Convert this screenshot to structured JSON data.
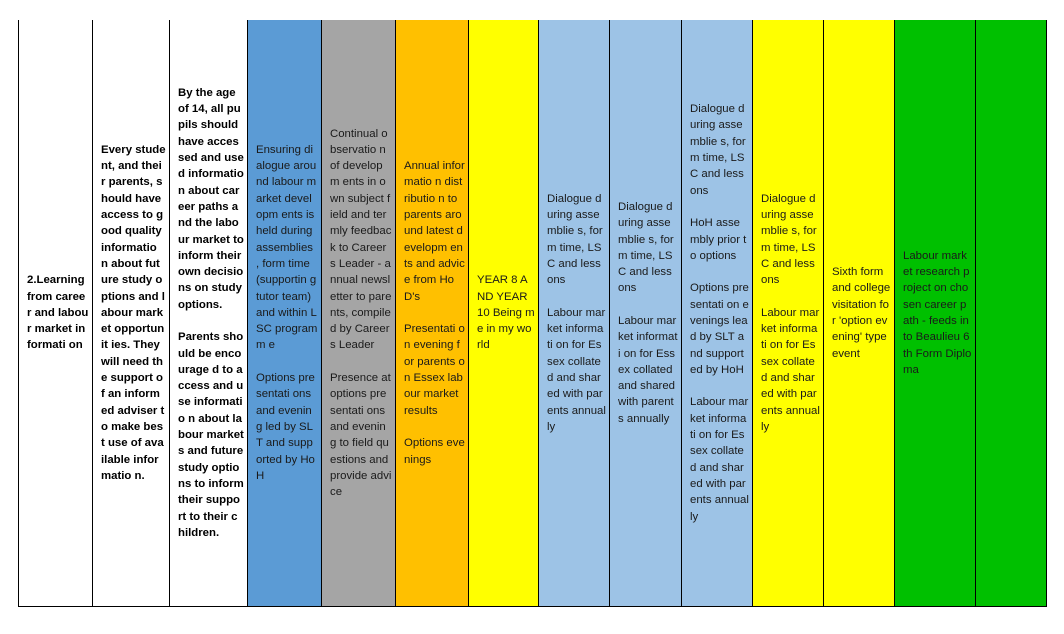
{
  "colors": {
    "blue_dark": "#5b9bd5",
    "grey": "#a5a5a5",
    "orange": "#ffc000",
    "yellow": "#ffff00",
    "blue_light": "#9dc3e6",
    "green": "#00c000",
    "white": "#ffffff"
  },
  "row": {
    "cells": [
      {
        "bg": "white",
        "bold": true,
        "paras": [
          "2.Learning from career and labour market informati on"
        ]
      },
      {
        "bg": "white",
        "bold": true,
        "paras": [
          "Every student, and their parents, should have access to good quality informatio n about future study options and labour market opportunit ies. They will need the support of an informed adviser to make best use of available informatio n."
        ]
      },
      {
        "bg": "white",
        "bold": true,
        "paras": [
          "By the age of 14, all pupils should have accessed and used informatio n about career paths and the labour market to inform their own decisions on study options.",
          "Parents should be encourage d to access and use informatio n about labour markets and future study options to inform their support to their children."
        ]
      },
      {
        "bg": "blue_dark",
        "bold": false,
        "paras": [
          "Ensuring dialogue around labour market developm ents is held during assemblies , form time (supportin g tutor team) and within LSC programm e",
          "Options presentati ons and evening led by SLT and supported by HoH"
        ]
      },
      {
        "bg": "grey",
        "bold": false,
        "paras": [
          "Continual observatio n of developm ents in own subject field and termly feedback to Careers Leader - annual newsletter to parents, compiled by Careers Leader",
          "Presence at options presentati ons and evening to field questions and provide advice"
        ]
      },
      {
        "bg": "orange",
        "bold": false,
        "paras": [
          "Annual informatio n distributio n to parents around latest developm ents and advice from HoD's",
          "Presentati on evening for parents on Essex labour market results",
          "Options evenings"
        ]
      },
      {
        "bg": "yellow",
        "bold": false,
        "paras": [
          "YEAR 8 AND YEAR 10 Being me in my world"
        ]
      },
      {
        "bg": "blue_light",
        "bold": false,
        "paras": [
          "Dialogue during assemblie s, form time, LSC and lessons",
          "Labour market informati on for Essex collated and shared with parents annually"
        ]
      },
      {
        "bg": "blue_light",
        "bold": false,
        "paras": [
          "Dialogue during assemblie s, form time, LSC and lessons",
          "Labour market informati on for Essex collated and shared with parents annually"
        ]
      },
      {
        "bg": "blue_light",
        "bold": false,
        "paras": [
          "Dialogue during assemblie s, form time, LSC and lessons",
          "HoH assembly prior to options",
          "Options presentati on evenings lead by SLT and supported by HoH",
          "Labour market informati on for Essex collated and shared with parents annually"
        ]
      },
      {
        "bg": "yellow",
        "bold": false,
        "paras": [
          "Dialogue during assemblie s, form time, LSC and lessons",
          "Labour market informati on for Essex collated and shared with parents annually"
        ]
      },
      {
        "bg": "yellow",
        "bold": false,
        "paras": [
          "Sixth form and college visitation for 'option evening' type event"
        ]
      },
      {
        "bg": "green",
        "bold": false,
        "paras": [
          "Labour market research project on chosen career path - feeds into Beaulieu 6th Form Diploma"
        ]
      },
      {
        "bg": "green",
        "bold": false,
        "paras": []
      }
    ]
  }
}
